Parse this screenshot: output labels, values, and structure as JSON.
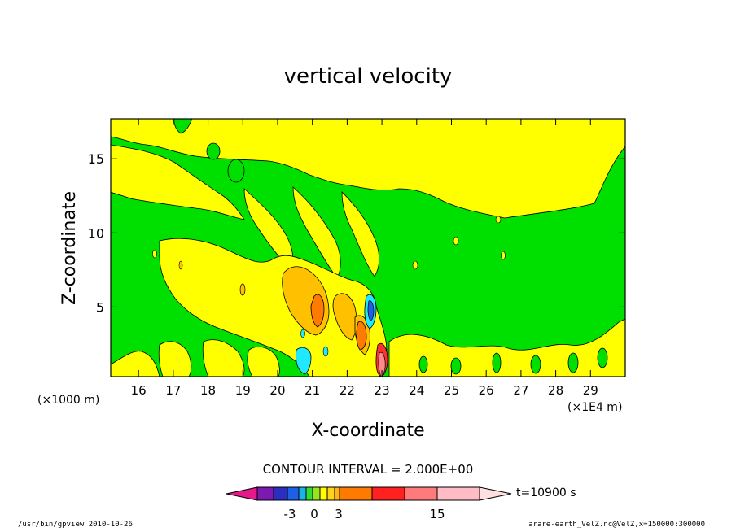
{
  "chart_data": {
    "type": "heatmap",
    "title": "vertical velocity",
    "xlabel": "X-coordinate",
    "ylabel": "Z-coordinate",
    "x_unit_left": "(×1000 m)",
    "x_unit_right": "(×1E4 m)",
    "xlim": [
      15.2,
      30.0
    ],
    "ylim": [
      0.3,
      17.7
    ],
    "xticks": [
      16,
      17,
      18,
      19,
      20,
      21,
      22,
      23,
      24,
      25,
      26,
      27,
      28,
      29
    ],
    "xtick_labels": [
      "16",
      "17",
      "18",
      "19",
      "20",
      "21",
      "22",
      "23",
      "24",
      "25",
      "26",
      "27",
      "28",
      "29"
    ],
    "yticks": [
      5,
      10,
      15
    ],
    "ytick_labels": [
      "5",
      "10",
      "15"
    ],
    "contour_interval": "CONTOUR INTERVAL = 2.000E+00",
    "time_label": "t=10900 s",
    "colorbar": {
      "colors": [
        "#e6198c",
        "#7a1ab0",
        "#2b2fbf",
        "#1f5ee6",
        "#18b4e6",
        "#33dd33",
        "#9be31c",
        "#ffff00",
        "#ffd21a",
        "#ffb319",
        "#ff7a00",
        "#ff2020",
        "#ff7a7a",
        "#ffbcc6",
        "#ffe0e0"
      ],
      "labels": [
        "-3",
        "0",
        "3",
        "15"
      ]
    },
    "regions_description_colors": {
      "green": "#00e000",
      "yellow": "#ffff00",
      "orange": "#ffc000",
      "red": "#ff3030",
      "cyan": "#20e8ff",
      "blue": "#1f5ee6"
    },
    "features": [
      {
        "x": 20.8,
        "z": 5.0,
        "level": "positive-moderate"
      },
      {
        "x": 21.1,
        "z": 4.5,
        "level": "positive-strong"
      },
      {
        "x": 22.1,
        "z": 3.5,
        "level": "positive-strong"
      },
      {
        "x": 22.9,
        "z": 1.5,
        "level": "positive-peak"
      },
      {
        "x": 22.6,
        "z": 4.3,
        "level": "negative-moderate"
      },
      {
        "x": 20.6,
        "z": 1.4,
        "level": "negative-moderate"
      }
    ]
  },
  "footer": {
    "left": "/usr/bin/gpview  2010-10-26",
    "right": "arare-earth_VelZ.nc@VelZ,x=150000:300000"
  }
}
